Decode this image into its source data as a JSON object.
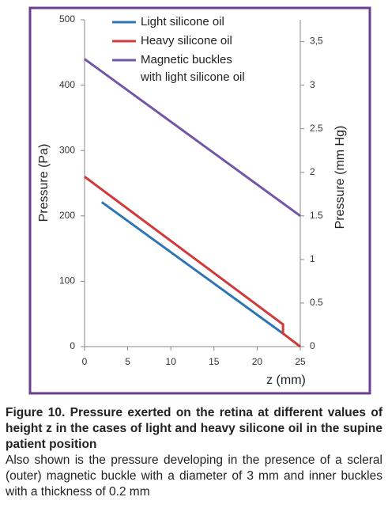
{
  "chart_data": {
    "type": "line",
    "ylabel": "Pressure (Pa)",
    "y2label": "Pressure (mm Hg)",
    "xlabel": "z (mm)",
    "xlim": [
      0,
      25
    ],
    "xticks": [
      0,
      5,
      10,
      15,
      20,
      25
    ],
    "ylim": [
      0,
      500
    ],
    "yticks": [
      0,
      100,
      200,
      300,
      400,
      500
    ],
    "y2lim": [
      0,
      3.7503
    ],
    "y2ticks": [
      0,
      {
        "value": 0.5,
        "label": "0.5"
      },
      1,
      1.5,
      2,
      2.5,
      3,
      {
        "value": 3.5,
        "label": "3,5"
      }
    ],
    "series": [
      {
        "name": "Light silicone oil",
        "color": "#2e75b6",
        "x": [
          2,
          23
        ],
        "values": [
          221,
          20
        ]
      },
      {
        "name": "Heavy silicone oil",
        "color": "#d03a3a",
        "x": [
          0,
          23,
          23,
          25
        ],
        "values": [
          260,
          34,
          20,
          0
        ]
      },
      {
        "name": "Magnetic buckles\nwith light silicone oil",
        "color": "#7356a8",
        "x": [
          0,
          25
        ],
        "values": [
          440,
          200
        ]
      }
    ]
  },
  "caption": {
    "title": "Figure 10. Pressure exerted on the retina at different values of height z in the cases of light and heavy silicone oil in the supine patient position",
    "text": "Also shown is the pressure developing in the presence of a scleral (outer) magnetic buckle with a diameter of 3 mm and inner buckles with a thickness of 0.2 mm"
  }
}
